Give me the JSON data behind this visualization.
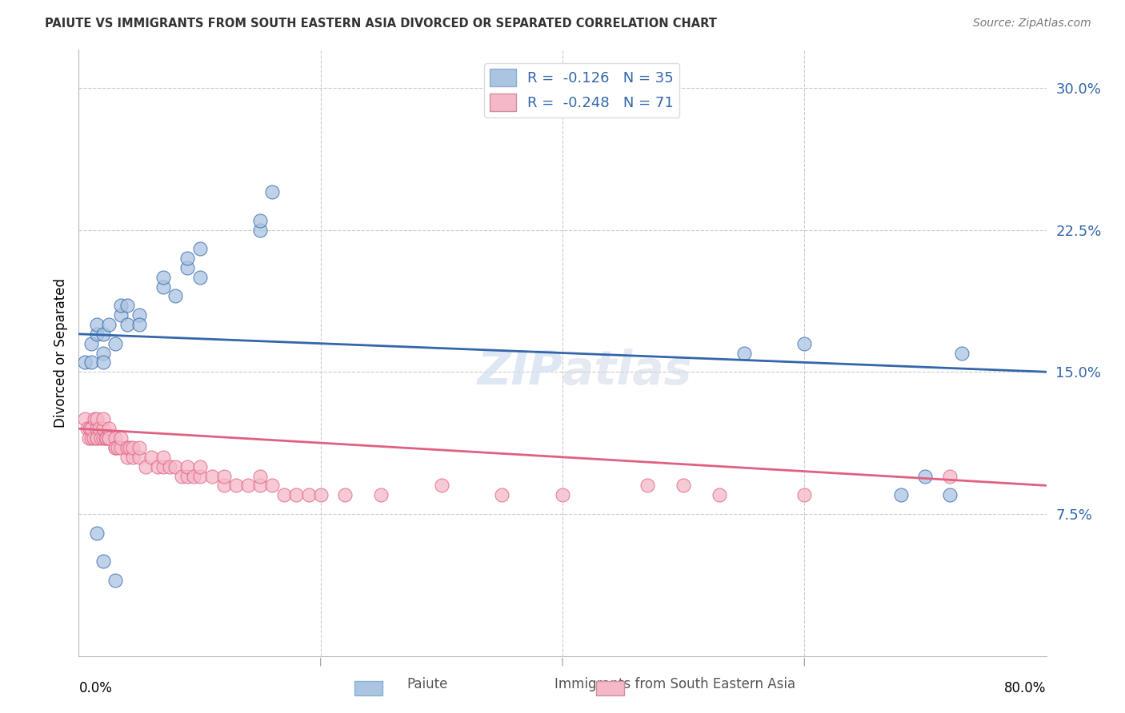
{
  "title": "PAIUTE VS IMMIGRANTS FROM SOUTH EASTERN ASIA DIVORCED OR SEPARATED CORRELATION CHART",
  "source": "Source: ZipAtlas.com",
  "ylabel": "Divorced or Separated",
  "xlim": [
    0.0,
    0.8
  ],
  "ylim": [
    0.0,
    0.32
  ],
  "yticks": [
    0.075,
    0.15,
    0.225,
    0.3
  ],
  "ytick_labels": [
    "7.5%",
    "15.0%",
    "22.5%",
    "30.0%"
  ],
  "xtick_positions": [
    0.0,
    0.2,
    0.4,
    0.6,
    0.8
  ],
  "blue_color": "#aac4e2",
  "pink_color": "#f5b8c8",
  "blue_line_color": "#3366aa",
  "pink_line_color": "#e06080",
  "grid_color": "#cccccc",
  "background_color": "#ffffff",
  "paiute_x": [
    0.005,
    0.01,
    0.01,
    0.015,
    0.015,
    0.02,
    0.02,
    0.02,
    0.025,
    0.03,
    0.035,
    0.035,
    0.04,
    0.04,
    0.05,
    0.05,
    0.07,
    0.07,
    0.08,
    0.09,
    0.09,
    0.1,
    0.1,
    0.15,
    0.15,
    0.16,
    0.015,
    0.02,
    0.03,
    0.55,
    0.6,
    0.68,
    0.7,
    0.72,
    0.73
  ],
  "paiute_y": [
    0.155,
    0.155,
    0.165,
    0.17,
    0.175,
    0.16,
    0.17,
    0.155,
    0.175,
    0.165,
    0.18,
    0.185,
    0.175,
    0.185,
    0.18,
    0.175,
    0.195,
    0.2,
    0.19,
    0.205,
    0.21,
    0.2,
    0.215,
    0.225,
    0.23,
    0.245,
    0.065,
    0.05,
    0.04,
    0.16,
    0.165,
    0.085,
    0.095,
    0.085,
    0.16
  ],
  "sea_x": [
    0.005,
    0.007,
    0.008,
    0.009,
    0.01,
    0.01,
    0.012,
    0.013,
    0.015,
    0.015,
    0.015,
    0.015,
    0.017,
    0.018,
    0.02,
    0.02,
    0.02,
    0.022,
    0.023,
    0.025,
    0.025,
    0.025,
    0.03,
    0.03,
    0.03,
    0.032,
    0.035,
    0.035,
    0.04,
    0.04,
    0.042,
    0.045,
    0.045,
    0.05,
    0.05,
    0.055,
    0.06,
    0.065,
    0.07,
    0.07,
    0.075,
    0.08,
    0.085,
    0.09,
    0.09,
    0.095,
    0.1,
    0.1,
    0.11,
    0.12,
    0.12,
    0.13,
    0.14,
    0.15,
    0.15,
    0.16,
    0.17,
    0.18,
    0.19,
    0.2,
    0.22,
    0.25,
    0.3,
    0.35,
    0.4,
    0.47,
    0.5,
    0.53,
    0.6,
    0.72
  ],
  "sea_y": [
    0.125,
    0.12,
    0.115,
    0.12,
    0.115,
    0.12,
    0.115,
    0.125,
    0.115,
    0.12,
    0.125,
    0.115,
    0.12,
    0.115,
    0.115,
    0.12,
    0.125,
    0.115,
    0.115,
    0.115,
    0.12,
    0.115,
    0.11,
    0.115,
    0.11,
    0.11,
    0.11,
    0.115,
    0.105,
    0.11,
    0.11,
    0.105,
    0.11,
    0.105,
    0.11,
    0.1,
    0.105,
    0.1,
    0.1,
    0.105,
    0.1,
    0.1,
    0.095,
    0.095,
    0.1,
    0.095,
    0.095,
    0.1,
    0.095,
    0.09,
    0.095,
    0.09,
    0.09,
    0.09,
    0.095,
    0.09,
    0.085,
    0.085,
    0.085,
    0.085,
    0.085,
    0.085,
    0.09,
    0.085,
    0.085,
    0.09,
    0.09,
    0.085,
    0.085,
    0.095
  ]
}
